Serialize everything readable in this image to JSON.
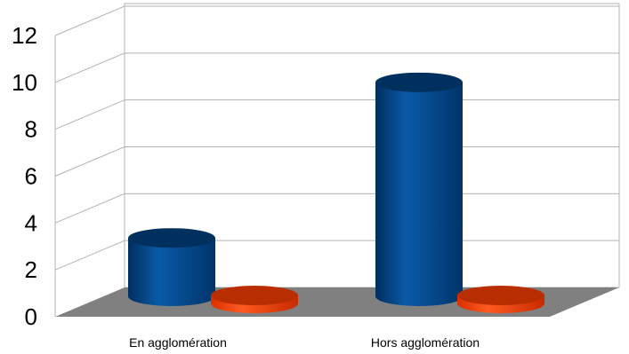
{
  "chart_data": {
    "type": "bar",
    "style": "3d-cylinder",
    "categories": [
      "En agglomération",
      "Hors agglomération"
    ],
    "series": [
      {
        "color": "#004586",
        "values": [
          3,
          11
        ]
      },
      {
        "color": "#ff420e",
        "values": [
          0,
          0
        ]
      }
    ],
    "ylim": [
      0,
      12
    ],
    "yticks": [
      "0",
      "2",
      "4",
      "6",
      "8",
      "10",
      "12"
    ],
    "grid": true,
    "legend": "none",
    "floor_color": "#808080"
  }
}
